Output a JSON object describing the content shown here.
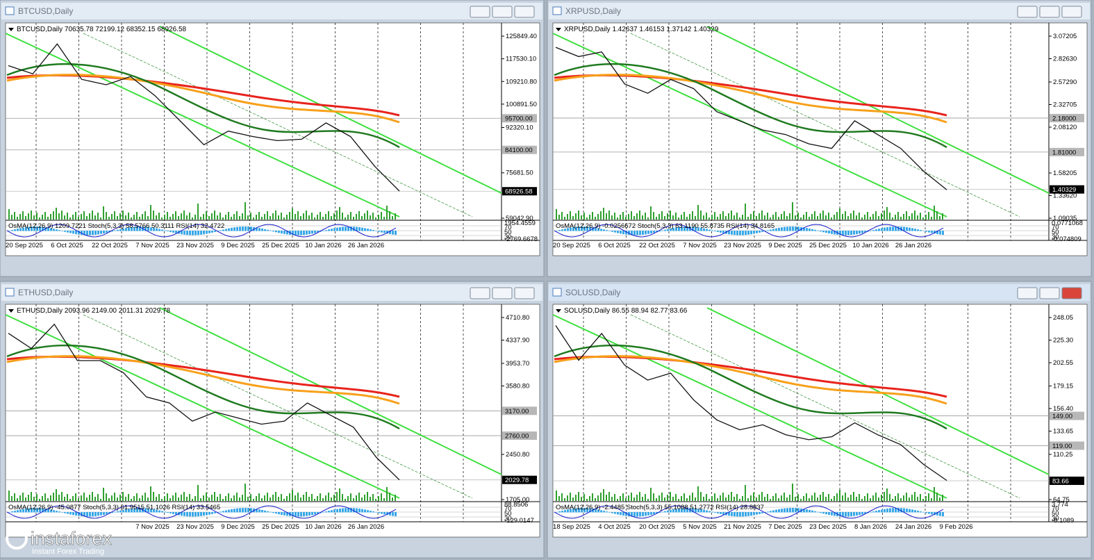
{
  "windows": [
    {
      "title": "BTCUSD,Daily",
      "header": "BTCUSD,Daily  70635.78 72199.12 68352.15 68926.58",
      "osc_header": "OsMA(12,26,9) 1209.7221  Stoch(5,3,3) 58.5766 50.3111  RSI(14) 32.4722",
      "price_ticks": [
        {
          "value": 125849.4,
          "label": "125849.40"
        },
        {
          "value": 117530.1,
          "label": "117530.10"
        },
        {
          "value": 109210.8,
          "label": "109210.80"
        },
        {
          "value": 100891.5,
          "label": "100891.50"
        },
        {
          "value": 92320.1,
          "label": "92320.10"
        },
        {
          "value": 75681.5,
          "label": "75681.50"
        },
        {
          "value": 59042.9,
          "label": "59042.90"
        }
      ],
      "levels": [
        {
          "value": 95700,
          "label": "95700.00"
        },
        {
          "value": 84100,
          "label": "84100.00"
        }
      ],
      "current": {
        "value": 68926.58,
        "label": "68926.58"
      },
      "osc_ticks": [
        "1954.4559",
        "70",
        "50",
        "30",
        "-2769.6678"
      ],
      "dates": [
        "20 Sep 2025",
        "6 Oct 2025",
        "22 Oct 2025",
        "7 Nov 2025",
        "23 Nov 2025",
        "9 Dec 2025",
        "25 Dec 2025",
        "10 Jan 2026",
        "26 Jan 2026"
      ],
      "closes": [
        115000,
        112000,
        123000,
        110000,
        108000,
        111000,
        104000,
        95000,
        86000,
        91000,
        89000,
        87500,
        88000,
        94000,
        89000,
        78000,
        69000
      ]
    },
    {
      "title": "XRPUSD,Daily",
      "header": "XRPUSD,Daily  1.42637 1.46153 1.37142 1.40329",
      "osc_header": "OsMA(12,26,9) -0.0256672  Stoch(5,3,3) 63.1190 55.8735  RSI(14) 34.8165",
      "price_ticks": [
        {
          "value": 3.07205,
          "label": "3.07205"
        },
        {
          "value": 2.8263,
          "label": "2.82630"
        },
        {
          "value": 2.5729,
          "label": "2.57290"
        },
        {
          "value": 2.32705,
          "label": "2.32705"
        },
        {
          "value": 2.0812,
          "label": "2.08120"
        },
        {
          "value": 1.58205,
          "label": "1.58205"
        },
        {
          "value": 1.3362,
          "label": "1.33620"
        },
        {
          "value": 1.09035,
          "label": "1.09035"
        }
      ],
      "levels": [
        {
          "value": 2.18,
          "label": "2.18000"
        },
        {
          "value": 1.81,
          "label": "1.81000"
        }
      ],
      "current": {
        "value": 1.40329,
        "label": "1.40329"
      },
      "osc_ticks": [
        "0.0771068",
        "70",
        "50",
        "30",
        "-0.074809"
      ],
      "dates": [
        "20 Sep 2025",
        "6 Oct 2025",
        "22 Oct 2025",
        "7 Nov 2025",
        "23 Nov 2025",
        "9 Dec 2025",
        "25 Dec 2025",
        "10 Jan 2026",
        "26 Jan 2026"
      ],
      "closes": [
        2.95,
        2.85,
        2.9,
        2.55,
        2.45,
        2.6,
        2.5,
        2.25,
        2.15,
        2.05,
        2.0,
        1.9,
        1.85,
        2.15,
        2.0,
        1.85,
        1.6,
        1.4
      ]
    },
    {
      "title": "ETHUSD,Daily",
      "header": "ETHUSD,Daily  2093.96 2149.00 2011.31 2029.78",
      "osc_header": "OsMA(12,26,9) -45.0877  Stoch(5,3,3) 61.9515 51.1026  RSI(14) 33.5465",
      "price_ticks": [
        {
          "value": 4710.8,
          "label": "4710.80"
        },
        {
          "value": 4337.9,
          "label": "4337.90"
        },
        {
          "value": 3953.7,
          "label": "3953.70"
        },
        {
          "value": 3580.8,
          "label": "3580.80"
        },
        {
          "value": 2450.8,
          "label": "2450.80"
        },
        {
          "value": 1705,
          "label": "1705.00"
        }
      ],
      "levels": [
        {
          "value": 3170,
          "label": "3170.00"
        },
        {
          "value": 2760,
          "label": "2760.00"
        }
      ],
      "current": {
        "value": 2029.78,
        "label": "2029.78"
      },
      "osc_ticks": [
        "88.8506",
        "70",
        "50",
        "30",
        "-129.0147"
      ],
      "dates": [
        "7 Nov 2025",
        "23 Nov 2025",
        "9 Dec 2025",
        "25 Dec 2025",
        "10 Jan 2026",
        "26 Jan 2026"
      ],
      "closes": [
        4450,
        4200,
        4600,
        4000,
        4000,
        3800,
        3400,
        3300,
        3000,
        3150,
        3050,
        2950,
        3000,
        3300,
        3100,
        2900,
        2400,
        2030
      ]
    },
    {
      "title": "SOLUSD,Daily",
      "header": "SOLUSD,Daily  86.55 88.94 82.77 83.66",
      "osc_header": "OsMA(12,26,9) -2.4485  Stoch(5,3,3) 55.1088 51.2772  RSI(14) 28.8837",
      "price_ticks": [
        {
          "value": 248.05,
          "label": "248.05"
        },
        {
          "value": 225.3,
          "label": "225.30"
        },
        {
          "value": 202.55,
          "label": "202.55"
        },
        {
          "value": 179.15,
          "label": "179.15"
        },
        {
          "value": 156.4,
          "label": "156.40"
        },
        {
          "value": 133.65,
          "label": "133.65"
        },
        {
          "value": 110.25,
          "label": "110.25"
        },
        {
          "value": 64.75,
          "label": "64.75"
        }
      ],
      "levels": [
        {
          "value": 149,
          "label": "149.00"
        },
        {
          "value": 119,
          "label": "119.00"
        }
      ],
      "current": {
        "value": 83.66,
        "label": "83.66"
      },
      "osc_ticks": [
        "3.774",
        "70",
        "50",
        "30",
        "-8.1089"
      ],
      "dates": [
        "18 Sep 2025",
        "4 Oct 2025",
        "20 Oct 2025",
        "5 Nov 2025",
        "21 Nov 2025",
        "7 Dec 2025",
        "23 Dec 2025",
        "8 Jan 2026",
        "24 Jan 2026",
        "9 Feb 2026"
      ],
      "closes": [
        240,
        205,
        232,
        200,
        185,
        192,
        165,
        145,
        135,
        140,
        130,
        125,
        128,
        142,
        130,
        120,
        100,
        84
      ]
    }
  ],
  "logo": {
    "name": "instaforex",
    "tagline": "Instant Forex Trading"
  }
}
